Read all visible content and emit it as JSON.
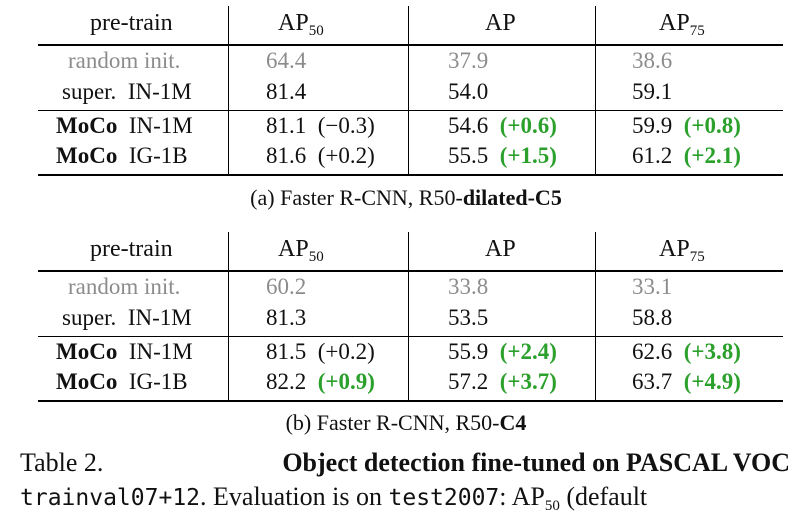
{
  "tables": [
    {
      "headers": {
        "pretrain": "pre-train",
        "ap50_base": "AP",
        "ap50_sub": "50",
        "ap": "AP",
        "ap75_base": "AP",
        "ap75_sub": "75"
      },
      "rows": [
        {
          "method": "",
          "data": "random init.",
          "ap50": "64.4",
          "ap50_delta": "",
          "ap": "37.9",
          "ap_delta": "",
          "ap75": "38.6",
          "ap75_delta": ""
        },
        {
          "method": "super.",
          "data": "IN-1M",
          "ap50": "81.4",
          "ap50_delta": "",
          "ap": "54.0",
          "ap_delta": "",
          "ap75": "59.1",
          "ap75_delta": ""
        },
        {
          "method": "MoCo",
          "data": "IN-1M",
          "ap50": "81.1",
          "ap50_delta": "(−0.3)",
          "ap": "54.6",
          "ap_delta": "(+0.6)",
          "ap75": "59.9",
          "ap75_delta": "(+0.8)"
        },
        {
          "method": "MoCo",
          "data": "IG-1B",
          "ap50": "81.6",
          "ap50_delta": "(+0.2)",
          "ap": "55.5",
          "ap_delta": "(+1.5)",
          "ap75": "61.2",
          "ap75_delta": "(+2.1)"
        }
      ],
      "caption_plain": "(a) Faster R-CNN, R50-",
      "caption_bold": "dilated-C5"
    },
    {
      "headers": {
        "pretrain": "pre-train",
        "ap50_base": "AP",
        "ap50_sub": "50",
        "ap": "AP",
        "ap75_base": "AP",
        "ap75_sub": "75"
      },
      "rows": [
        {
          "method": "",
          "data": "random init.",
          "ap50": "60.2",
          "ap50_delta": "",
          "ap": "33.8",
          "ap_delta": "",
          "ap75": "33.1",
          "ap75_delta": ""
        },
        {
          "method": "super.",
          "data": "IN-1M",
          "ap50": "81.3",
          "ap50_delta": "",
          "ap": "53.5",
          "ap_delta": "",
          "ap75": "58.8",
          "ap75_delta": ""
        },
        {
          "method": "MoCo",
          "data": "IN-1M",
          "ap50": "81.5",
          "ap50_delta": "(+0.2)",
          "ap": "55.9",
          "ap_delta": "(+2.4)",
          "ap75": "62.6",
          "ap75_delta": "(+3.8)"
        },
        {
          "method": "MoCo",
          "data": "IG-1B",
          "ap50": "82.2",
          "ap50_delta": "(+0.9)",
          "ap": "57.2",
          "ap_delta": "(+3.7)",
          "ap75": "63.7",
          "ap75_delta": "(+4.9)"
        }
      ],
      "caption_plain": "(b) Faster R-CNN, R50-",
      "caption_bold": "C4"
    }
  ],
  "table_caption": {
    "label": "Table 2.",
    "title": "Object detection fine-tuned on PASCAL VOC",
    "mono1": "trainval07+12",
    "text1": ". Evaluation is on ",
    "mono2": "test2007",
    "text2": ": AP",
    "sub": "50",
    "text3": " (default"
  }
}
